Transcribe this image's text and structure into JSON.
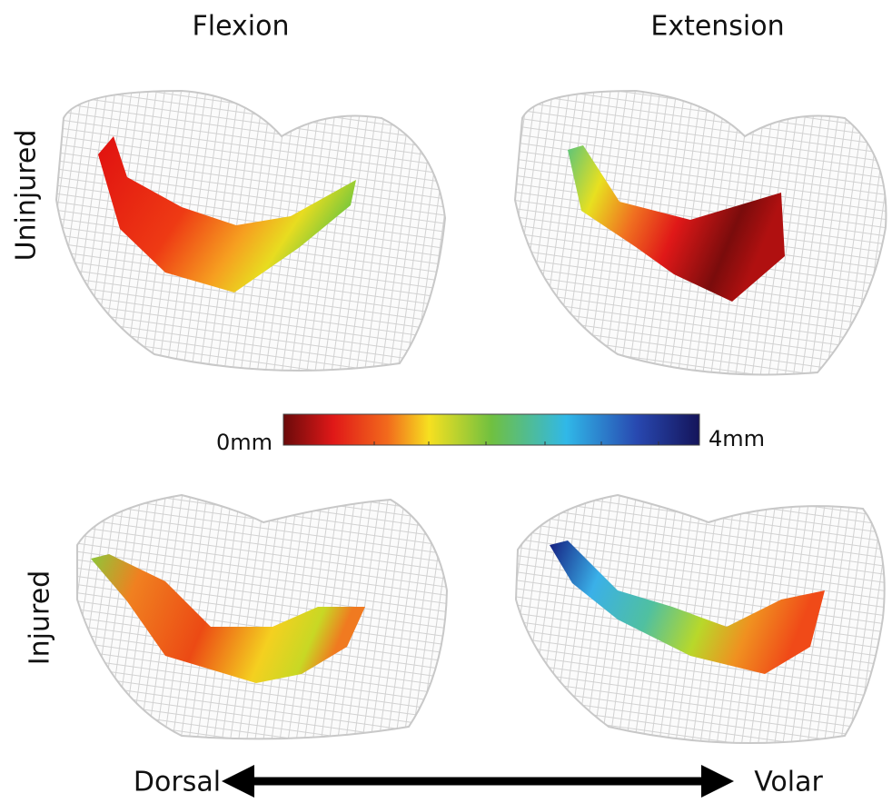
{
  "columns": [
    "Flexion",
    "Extension"
  ],
  "rows": [
    "Uninjured",
    "Injured"
  ],
  "colorbar": {
    "min_label": "0mm",
    "max_label": "4mm"
  },
  "direction": {
    "left": "Dorsal",
    "right": "Volar"
  }
}
